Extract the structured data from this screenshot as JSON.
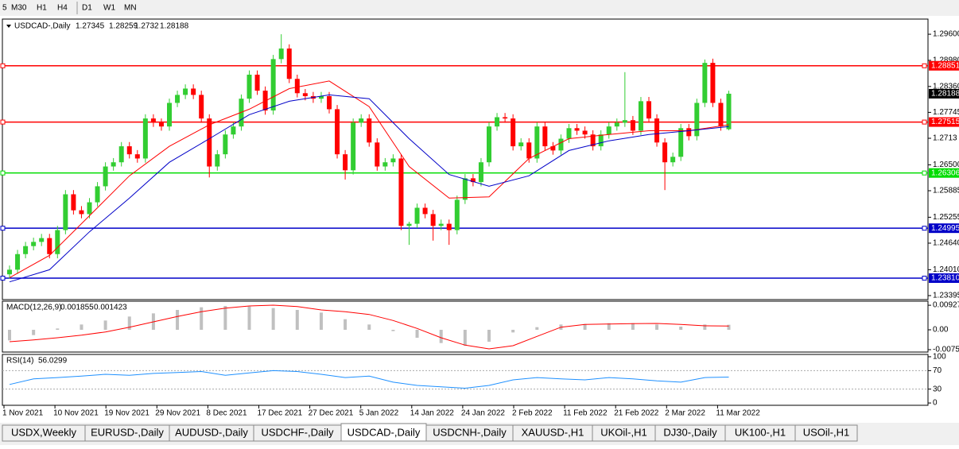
{
  "toolbar": [
    "5",
    "M30",
    "H1",
    "H4",
    "D1",
    "W1",
    "MN"
  ],
  "tabs": [
    "USDX,Weekly",
    "EURUSD-,Daily",
    "AUDUSD-,Daily",
    "USDCHF-,Daily",
    "USDCAD-,Daily",
    "USDCNH-,Daily",
    "XAUUSD-,H1",
    "UKOil-,H1",
    "DJ30-,Daily",
    "UK100-,H1",
    "USOil-,H1"
  ],
  "active_tab": 4,
  "chart_data": {
    "type": "candlestick",
    "symbol": "USDCAD-,Daily",
    "up_color": "#32cd32",
    "down_color": "#ff0000",
    "ylim": [
      1.233,
      1.2996
    ],
    "yticks": [
      {
        "value": 1.296,
        "label": "1.29600"
      },
      {
        "value": 1.2898,
        "label": "1.28980"
      },
      {
        "value": 1.2836,
        "label": "1.28360"
      },
      1.27745,
      1.2713,
      {
        "value": 1.265,
        "label": "1.26500"
      },
      1.25885,
      1.25255,
      {
        "value": 1.2464,
        "label": "1.24640"
      },
      {
        "value": 1.2401,
        "label": "1.24010"
      },
      1.23395
    ],
    "x_labels": [
      "1 Nov 2021",
      "10 Nov 2021",
      "19 Nov 2021",
      "29 Nov 2021",
      "8 Dec 2021",
      "17 Dec 2021",
      "27 Dec 2021",
      "5 Jan 2022",
      "14 Jan 2022",
      "24 Jan 2022",
      "2 Feb 2022",
      "11 Feb 2022",
      "21 Feb 2022",
      "2 Mar 2022",
      "11 Mar 2022"
    ],
    "open": [
      1.239,
      1.2401,
      1.2438,
      1.2457,
      1.2467,
      1.2476,
      1.2438,
      1.2495,
      1.258,
      1.2542,
      1.2533,
      1.2561,
      1.2599,
      1.2646,
      1.2656,
      1.2694,
      1.2675,
      1.2665,
      1.276,
      1.275,
      1.2741,
      1.2797,
      1.2816,
      1.2831,
      1.2816,
      1.276,
      1.2646,
      1.2675,
      1.2722,
      1.2741,
      1.2807,
      1.2864,
      1.2826,
      1.2779,
      1.2901,
      1.2926,
      1.2854,
      1.282,
      1.2813,
      1.2807,
      1.2813,
      1.2782,
      1.2675,
      1.2637,
      1.275,
      1.276,
      1.2703,
      1.2646,
      1.2656,
      1.2665,
      1.2505,
      1.251,
      1.2548,
      1.2533,
      1.2505,
      1.251,
      1.2495,
      1.2567,
      1.2618,
      1.2609,
      1.2656,
      1.2741,
      1.2763,
      1.276,
      1.2694,
      1.2703,
      1.2665,
      1.2741,
      1.2694,
      1.2684,
      1.2712,
      1.2737,
      1.2731,
      1.2722,
      1.2694,
      1.2722,
      1.2741,
      1.275,
      1.2756,
      1.2731,
      1.2801,
      1.276,
      1.2703,
      1.2656,
      1.2669,
      1.2737,
      1.2718,
      1.2797,
      1.2892,
      1.2797,
      1.27345
    ],
    "high": [
      1.2411,
      1.2448,
      1.2467,
      1.2477,
      1.2486,
      1.2486,
      1.2505,
      1.259,
      1.259,
      1.2552,
      1.2571,
      1.2609,
      1.2656,
      1.2666,
      1.2704,
      1.2704,
      1.2685,
      1.277,
      1.277,
      1.276,
      1.2807,
      1.2826,
      1.2841,
      1.2841,
      1.2826,
      1.277,
      1.2685,
      1.2732,
      1.2751,
      1.2817,
      1.2874,
      1.2874,
      1.2836,
      1.2911,
      1.296,
      1.2936,
      1.2864,
      1.283,
      1.2823,
      1.2823,
      1.2823,
      1.2792,
      1.2685,
      1.276,
      1.277,
      1.277,
      1.2713,
      1.2666,
      1.2675,
      1.2675,
      1.2515,
      1.2558,
      1.2558,
      1.2543,
      1.252,
      1.252,
      1.2577,
      1.2628,
      1.2628,
      1.2666,
      1.2751,
      1.2773,
      1.2773,
      1.277,
      1.2713,
      1.2713,
      1.2751,
      1.2751,
      1.2704,
      1.2722,
      1.2747,
      1.2747,
      1.2741,
      1.2732,
      1.2732,
      1.2751,
      1.276,
      1.287,
      1.2766,
      1.2811,
      1.2811,
      1.277,
      1.2713,
      1.2679,
      1.2747,
      1.2747,
      1.2807,
      1.29,
      1.2902,
      1.2807,
      1.28259
    ],
    "low": [
      1.238,
      1.2391,
      1.2428,
      1.2447,
      1.2457,
      1.2428,
      1.2428,
      1.2485,
      1.2532,
      1.2523,
      1.2523,
      1.2551,
      1.2589,
      1.2636,
      1.2646,
      1.2665,
      1.2655,
      1.2655,
      1.274,
      1.2731,
      1.2731,
      1.2787,
      1.2806,
      1.2806,
      1.275,
      1.262,
      1.2636,
      1.2665,
      1.2712,
      1.2731,
      1.2797,
      1.2816,
      1.2769,
      1.2769,
      1.2891,
      1.2844,
      1.281,
      1.2803,
      1.2797,
      1.2797,
      1.2772,
      1.2665,
      1.2615,
      1.2627,
      1.274,
      1.2693,
      1.2636,
      1.2636,
      1.2646,
      1.2495,
      1.246,
      1.25,
      1.2523,
      1.247,
      1.2495,
      1.246,
      1.2485,
      1.2557,
      1.2599,
      1.2599,
      1.2646,
      1.2731,
      1.275,
      1.2684,
      1.2684,
      1.2655,
      1.2655,
      1.2684,
      1.2674,
      1.2674,
      1.2702,
      1.2721,
      1.2712,
      1.2684,
      1.2684,
      1.2712,
      1.2731,
      1.274,
      1.2721,
      1.2721,
      1.275,
      1.2693,
      1.259,
      1.2646,
      1.2659,
      1.2708,
      1.2708,
      1.2787,
      1.2787,
      1.2731,
      1.2732
    ],
    "close": [
      1.2401,
      1.2438,
      1.2457,
      1.2467,
      1.2476,
      1.2438,
      1.2495,
      1.258,
      1.2542,
      1.2533,
      1.2561,
      1.2599,
      1.2646,
      1.2656,
      1.2694,
      1.2675,
      1.2665,
      1.276,
      1.275,
      1.2741,
      1.2797,
      1.2816,
      1.2831,
      1.2816,
      1.276,
      1.2646,
      1.2675,
      1.2722,
      1.2741,
      1.2807,
      1.2864,
      1.2826,
      1.2779,
      1.2901,
      1.2926,
      1.2854,
      1.282,
      1.2813,
      1.2807,
      1.2813,
      1.2782,
      1.2675,
      1.2637,
      1.275,
      1.276,
      1.2703,
      1.2646,
      1.2656,
      1.2665,
      1.2505,
      1.251,
      1.2548,
      1.2533,
      1.2505,
      1.251,
      1.2495,
      1.2567,
      1.2618,
      1.2609,
      1.2656,
      1.2741,
      1.2763,
      1.276,
      1.2694,
      1.2703,
      1.2665,
      1.2741,
      1.2694,
      1.2684,
      1.2712,
      1.2737,
      1.2731,
      1.2722,
      1.2694,
      1.2722,
      1.2741,
      1.275,
      1.2756,
      1.2731,
      1.2801,
      1.276,
      1.2703,
      1.2656,
      1.2669,
      1.2737,
      1.2718,
      1.2797,
      1.2892,
      1.2797,
      1.2741,
      1.28188
    ],
    "overlays": [
      {
        "color": "#ff0000",
        "x": [
          0,
          5,
          10,
          15,
          20,
          25,
          30,
          35,
          40,
          45,
          50,
          55,
          60,
          65,
          70,
          75,
          80,
          85,
          90
        ],
        "values": [
          1.2382,
          1.2435,
          1.2529,
          1.2624,
          1.2694,
          1.2745,
          1.2782,
          1.2831,
          1.2849,
          1.2788,
          1.2646,
          1.2571,
          1.2574,
          1.2665,
          1.2712,
          1.2722,
          1.2731,
          1.2731,
          1.2745
        ]
      },
      {
        "color": "#0000c8",
        "x": [
          0,
          5,
          10,
          15,
          20,
          25,
          30,
          35,
          40,
          45,
          50,
          55,
          60,
          65,
          70,
          75,
          80,
          85,
          90
        ],
        "values": [
          1.2372,
          1.2401,
          1.2491,
          1.2571,
          1.2656,
          1.2712,
          1.2769,
          1.2801,
          1.2816,
          1.2807,
          1.2712,
          1.2627,
          1.2599,
          1.2624,
          1.2684,
          1.2707,
          1.2722,
          1.2731,
          1.2741
        ]
      }
    ],
    "levels": [
      {
        "value": 1.28851,
        "color": "#ff0000"
      },
      {
        "value": 1.27515,
        "color": "#ff0000"
      },
      {
        "value": 1.26306,
        "color": "#00dd00"
      },
      {
        "value": 1.24995,
        "color": "#0000c8"
      },
      {
        "value": 1.2381,
        "label": "1.23810",
        "color": "#0000c8"
      }
    ],
    "macd": {
      "name": "MACD(12,26,9)",
      "main": 0.001855,
      "signal": 0.001423,
      "ylim": [
        -0.0084,
        0.0108
      ],
      "yticks": [
        0.00927,
        {
          "value": 0,
          "label": "0.00"
        },
        {
          "value": -0.0075,
          "label": "-0.00750"
        }
      ],
      "x": [
        0,
        3,
        6,
        9,
        12,
        15,
        18,
        21,
        24,
        27,
        30,
        33,
        36,
        39,
        42,
        45,
        48,
        51,
        54,
        57,
        60,
        63,
        66,
        69,
        72,
        75,
        78,
        81,
        84,
        87,
        90
      ],
      "histogram": [
        -0.004,
        -0.002,
        0.0005,
        0.002,
        0.0035,
        0.005,
        0.0062,
        0.0075,
        0.0085,
        0.009,
        0.0088,
        0.0082,
        0.0075,
        0.0065,
        0.004,
        0.002,
        -0.0005,
        -0.003,
        -0.005,
        -0.006,
        -0.0045,
        -0.001,
        0.001,
        0.002,
        0.0022,
        0.0025,
        0.0025,
        0.002,
        0.0012,
        0.002,
        0.0019
      ],
      "signal_line": [
        -0.0045,
        -0.0038,
        -0.003,
        -0.002,
        -0.0008,
        0.001,
        0.003,
        0.005,
        0.0068,
        0.0082,
        0.009,
        0.0093,
        0.0088,
        0.0075,
        0.0068,
        0.0058,
        0.0035,
        0.0005,
        -0.003,
        -0.0058,
        -0.0072,
        -0.006,
        -0.0025,
        0.001,
        0.002,
        0.0022,
        0.0023,
        0.0024,
        0.002,
        0.0015,
        0.0014
      ]
    },
    "rsi": {
      "name": "RSI(14)",
      "last": 56.0299,
      "ylim": [
        -5,
        105
      ],
      "yticks": [
        100,
        70,
        30,
        0
      ],
      "x": [
        0,
        3,
        6,
        9,
        12,
        15,
        18,
        21,
        24,
        27,
        30,
        33,
        36,
        39,
        42,
        45,
        48,
        51,
        54,
        57,
        60,
        63,
        66,
        69,
        72,
        75,
        78,
        81,
        84,
        87,
        90
      ],
      "values": [
        40,
        52,
        55,
        58,
        62,
        60,
        64,
        66,
        68,
        60,
        65,
        70,
        68,
        62,
        55,
        58,
        45,
        38,
        35,
        32,
        38,
        50,
        55,
        52,
        50,
        55,
        52,
        48,
        45,
        55,
        56.0299
      ]
    }
  }
}
